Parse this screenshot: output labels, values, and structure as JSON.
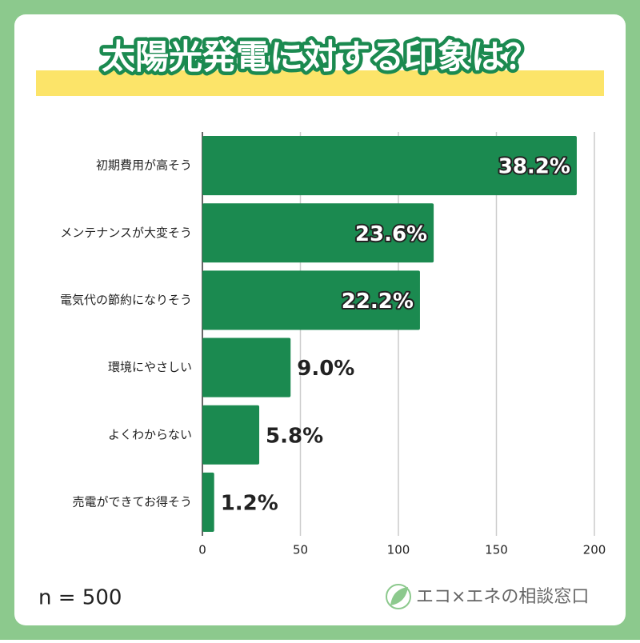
{
  "chart_data": {
    "type": "barh",
    "title": "太陽光発電に対する印象は？",
    "categories": [
      "初期費用が高そう",
      "メンテナンスが大変そう",
      "電気代の節約になりそう",
      "環境にやさしい",
      "よくわからない",
      "売電ができてお得そう"
    ],
    "values": [
      191,
      118,
      111,
      45,
      29,
      6
    ],
    "value_labels": [
      "38.2%",
      "23.6%",
      "22.2%",
      "9.0%",
      "5.8%",
      "1.2%"
    ],
    "color": "#1b8a50",
    "xlim": [
      0,
      200
    ],
    "xticks": [
      0,
      50,
      100,
      150,
      200
    ],
    "grid": true,
    "annotation": "n = 500",
    "logo": "エコ×エネの相談窓口"
  }
}
